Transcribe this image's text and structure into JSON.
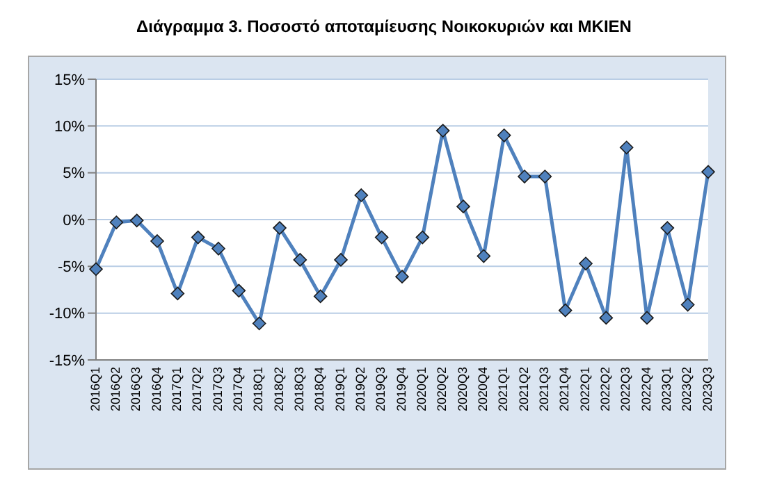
{
  "chart_data": {
    "type": "line",
    "title": "Διάγραμμα 3. Ποσοστό αποταμίευσης Νοικοκυριών και ΜΚΙΕΝ",
    "categories": [
      "2016Q1",
      "2016Q2",
      "2016Q3",
      "2016Q4",
      "2017Q1",
      "2017Q2",
      "2017Q3",
      "2017Q4",
      "2018Q1",
      "2018Q2",
      "2018Q3",
      "2018Q4",
      "2019Q1",
      "2019Q2",
      "2019Q3",
      "2019Q4",
      "2020Q1",
      "2020Q2",
      "2020Q3",
      "2020Q4",
      "2021Q1",
      "2021Q2",
      "2021Q3",
      "2021Q4",
      "2022Q1",
      "2022Q2",
      "2022Q3",
      "2022Q4",
      "2023Q1",
      "2023Q2",
      "2023Q3"
    ],
    "series": [
      {
        "color": "#4f81bd",
        "values": [
          -5.3,
          -0.3,
          -0.1,
          -2.3,
          -7.9,
          -1.9,
          -3.1,
          -7.6,
          -11.1,
          -0.9,
          -4.3,
          -8.2,
          -4.3,
          2.6,
          -1.9,
          -6.1,
          -1.9,
          9.5,
          1.4,
          -3.9,
          9.0,
          4.6,
          4.6,
          -9.7,
          -4.7,
          -10.5,
          7.7,
          -10.5,
          -0.9,
          -9.1,
          5.1
        ]
      }
    ],
    "ylim": [
      -15,
      15
    ],
    "yticks": [
      {
        "value": -15,
        "label": "-15%"
      },
      {
        "value": -10,
        "label": "-10%"
      },
      {
        "value": -5,
        "label": "-5%"
      },
      {
        "value": 0,
        "label": "0%"
      },
      {
        "value": 5,
        "label": "5%"
      },
      {
        "value": 10,
        "label": "10%"
      },
      {
        "value": 15,
        "label": "15%"
      }
    ],
    "grid": "y",
    "marker": "diamond",
    "line_style": "solid",
    "legend": false
  }
}
